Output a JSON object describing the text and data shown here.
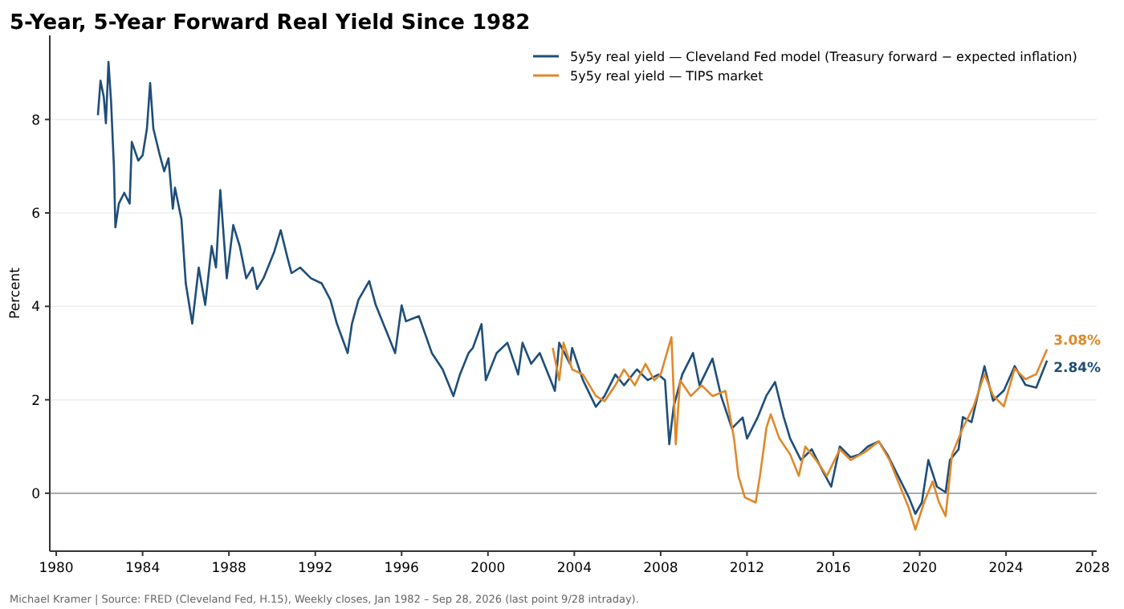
{
  "chart_data": {
    "type": "line",
    "title": "5-Year, 5-Year Forward Real Yield Since 1982",
    "ylabel": "Percent",
    "xlim": [
      1979.7,
      2028.2
    ],
    "xticks": [
      1980,
      1984,
      1988,
      1992,
      1996,
      2000,
      2004,
      2008,
      2012,
      2016,
      2020,
      2024,
      2028
    ],
    "ylim": [
      -1.24,
      9.8
    ],
    "yticks": [
      0,
      2,
      4,
      6,
      8
    ],
    "grid": "y",
    "legend": "top right",
    "ref_lines": [
      {
        "axis": "y",
        "value": 0,
        "color": "#aaaaaa"
      }
    ],
    "annotations": [
      {
        "text": "3.08%",
        "x": 2025.9,
        "y": 3.08
      },
      {
        "text": "2.84%",
        "x": 2025.9,
        "y": 2.84
      },
      "Michael Kramer  |  Source: FRED (Cleveland Fed, H.15), Weekly closes, Jan 1982 – Sep 28, 2026 (last point 9/28 intraday)."
    ],
    "series": [
      {
        "name": "5y5y real yield — Cleveland Fed model (Treasury forward − expected inflation)",
        "color": "#1f4e79",
        "x": [
          1981.93,
          1982.05,
          1982.2,
          1982.3,
          1982.42,
          1982.54,
          1982.67,
          1982.74,
          1982.9,
          1983.15,
          1983.4,
          1983.5,
          1983.8,
          1984.0,
          1984.2,
          1984.35,
          1984.5,
          1984.8,
          1985.0,
          1985.2,
          1985.4,
          1985.5,
          1985.8,
          1986.0,
          1986.3,
          1986.6,
          1986.9,
          1987.2,
          1987.4,
          1987.6,
          1987.9,
          1988.2,
          1988.5,
          1988.8,
          1989.1,
          1989.3,
          1989.6,
          1990.1,
          1990.4,
          1990.7,
          1990.9,
          1991.3,
          1991.8,
          1992.3,
          1992.7,
          1993.0,
          1993.5,
          1993.7,
          1994.0,
          1994.5,
          1994.8,
          1995.3,
          1995.7,
          1996.0,
          1996.2,
          1996.8,
          1997.4,
          1997.9,
          1998.4,
          1998.7,
          1999.1,
          1999.3,
          1999.7,
          1999.9,
          2000.4,
          2000.9,
          2001.4,
          2001.6,
          2002.0,
          2002.4,
          2002.8,
          2003.1,
          2003.3,
          2003.8,
          2003.9,
          2004.4,
          2005.0,
          2005.4,
          2005.9,
          2006.3,
          2006.9,
          2007.4,
          2007.9,
          2008.2,
          2008.4,
          2008.6,
          2009.0,
          2009.5,
          2009.8,
          2010.4,
          2010.8,
          2011.3,
          2011.8,
          2012.0,
          2012.5,
          2012.9,
          2013.3,
          2013.7,
          2014.0,
          2014.5,
          2015.0,
          2015.5,
          2015.9,
          2016.3,
          2016.8,
          2017.2,
          2017.6,
          2018.1,
          2018.5,
          2019.0,
          2019.5,
          2019.8,
          2020.1,
          2020.4,
          2020.8,
          2021.2,
          2021.4,
          2021.8,
          2022.0,
          2022.4,
          2023.0,
          2023.4,
          2023.9,
          2024.4,
          2024.9,
          2025.4,
          2025.9
        ],
        "values": [
          8.09,
          8.83,
          8.49,
          7.92,
          9.23,
          8.38,
          7.0,
          5.69,
          6.2,
          6.43,
          6.2,
          7.52,
          7.12,
          7.23,
          7.8,
          8.78,
          7.8,
          7.23,
          6.89,
          7.17,
          6.09,
          6.54,
          5.86,
          4.49,
          3.63,
          4.83,
          4.03,
          5.29,
          4.83,
          6.49,
          4.6,
          5.74,
          5.29,
          4.6,
          4.83,
          4.37,
          4.6,
          5.17,
          5.63,
          5.06,
          4.71,
          4.83,
          4.6,
          4.49,
          4.14,
          3.63,
          3.0,
          3.63,
          4.14,
          4.54,
          4.03,
          3.46,
          3.0,
          4.02,
          3.68,
          3.79,
          3.0,
          2.65,
          2.08,
          2.54,
          3.0,
          3.11,
          3.62,
          2.42,
          3.0,
          3.22,
          2.54,
          3.22,
          2.77,
          3.0,
          2.54,
          2.19,
          3.22,
          2.77,
          3.11,
          2.42,
          1.85,
          2.08,
          2.54,
          2.31,
          2.65,
          2.42,
          2.54,
          2.42,
          1.05,
          1.85,
          2.54,
          3.0,
          2.31,
          2.88,
          2.08,
          1.39,
          1.62,
          1.17,
          1.63,
          2.09,
          2.38,
          1.63,
          1.17,
          0.71,
          0.94,
          0.48,
          0.14,
          1.0,
          0.77,
          0.83,
          1.0,
          1.11,
          0.83,
          0.37,
          -0.09,
          -0.44,
          -0.2,
          0.71,
          0.14,
          0.02,
          0.71,
          0.94,
          1.63,
          1.52,
          2.72,
          1.98,
          2.2,
          2.72,
          2.32,
          2.26,
          2.84
        ]
      },
      {
        "name": "5y5y real yield — TIPS market",
        "color": "#e0882a",
        "x": [
          2003.0,
          2003.3,
          2003.5,
          2003.9,
          2004.4,
          2005.0,
          2005.4,
          2005.9,
          2006.3,
          2006.8,
          2007.3,
          2007.7,
          2008.0,
          2008.5,
          2008.7,
          2008.9,
          2009.4,
          2009.9,
          2010.4,
          2011.0,
          2011.4,
          2011.6,
          2011.9,
          2012.4,
          2012.6,
          2012.9,
          2013.1,
          2013.5,
          2014.0,
          2014.4,
          2014.7,
          2015.2,
          2015.7,
          2016.3,
          2016.8,
          2017.5,
          2018.1,
          2018.6,
          2019.0,
          2019.5,
          2019.8,
          2020.2,
          2020.6,
          2020.9,
          2021.2,
          2021.5,
          2022.0,
          2022.5,
          2023.0,
          2023.4,
          2023.9,
          2024.4,
          2024.9,
          2025.4,
          2025.9
        ],
        "values": [
          3.11,
          2.42,
          3.22,
          2.65,
          2.54,
          2.08,
          1.97,
          2.31,
          2.65,
          2.31,
          2.77,
          2.42,
          2.54,
          3.34,
          1.05,
          2.42,
          2.08,
          2.31,
          2.08,
          2.19,
          1.17,
          0.37,
          -0.09,
          -0.2,
          0.37,
          1.4,
          1.69,
          1.17,
          0.83,
          0.37,
          1.0,
          0.71,
          0.37,
          0.94,
          0.71,
          0.89,
          1.11,
          0.71,
          0.25,
          -0.32,
          -0.78,
          -0.2,
          0.25,
          -0.2,
          -0.49,
          0.83,
          1.4,
          1.86,
          2.55,
          2.09,
          1.86,
          2.67,
          2.44,
          2.55,
          3.08
        ]
      }
    ]
  }
}
